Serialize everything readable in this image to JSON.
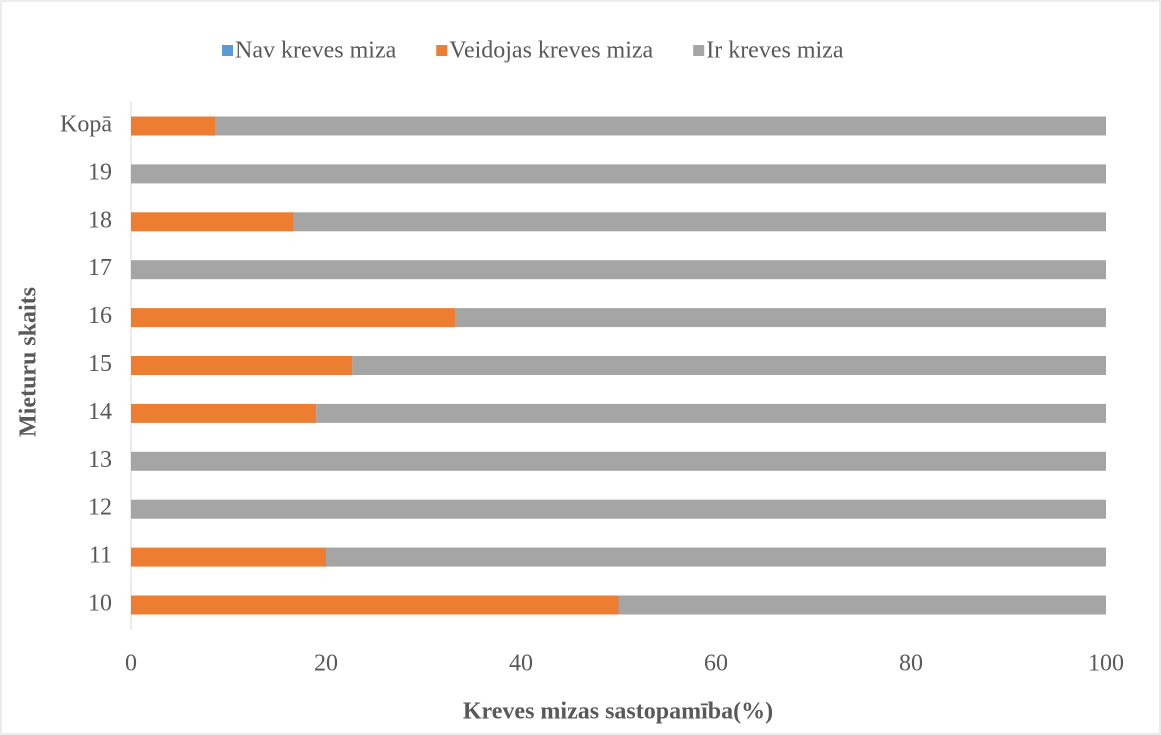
{
  "chart_data": {
    "type": "stacked-barh",
    "xlabel": "Kreves mizas  sastopamība(%)",
    "ylabel": "Mieturu skaits",
    "categories": [
      "10",
      "11",
      "12",
      "13",
      "14",
      "15",
      "16",
      "17",
      "18",
      "19",
      "Kopā"
    ],
    "series": [
      {
        "name": "Nav kreves miza",
        "color": "#5b9bd5",
        "values": [
          0,
          0,
          0,
          0,
          0,
          0,
          0,
          0,
          0,
          0,
          0
        ]
      },
      {
        "name": "Veidojas kreves miza",
        "color": "#ed7d31",
        "values": [
          50,
          20,
          0,
          0,
          19,
          22.7,
          33.3,
          0,
          16.7,
          0,
          8.7
        ]
      },
      {
        "name": "Ir kreves miza",
        "color": "#a5a5a5",
        "values": [
          50,
          80,
          100,
          100,
          81,
          77.3,
          66.7,
          100,
          83.3,
          100,
          91.3
        ]
      }
    ],
    "xlim": [
      0,
      100
    ],
    "xticks": [
      0,
      20,
      40,
      60,
      80,
      100
    ],
    "grid": false,
    "legend": "top"
  }
}
